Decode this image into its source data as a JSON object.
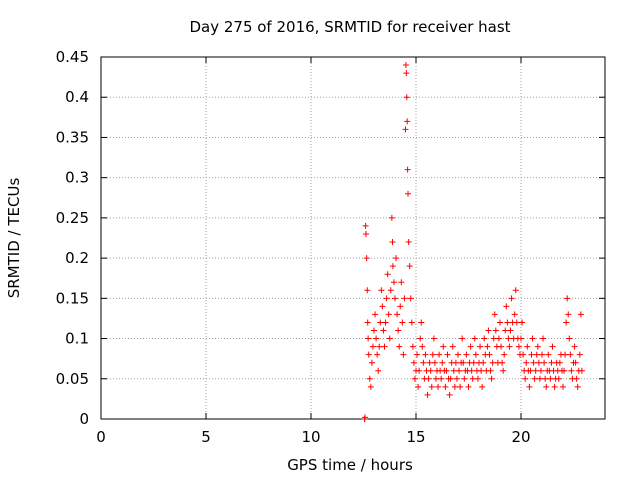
{
  "chart_data": {
    "type": "scatter",
    "title": "Day 275 of 2016, SRMTID for receiver hast",
    "xlabel": "GPS time / hours",
    "ylabel": "SRMTID / TECUs",
    "xlim": [
      0,
      24
    ],
    "ylim": [
      0,
      0.45
    ],
    "x_ticks": [
      0,
      5,
      10,
      15,
      20
    ],
    "x_tick_labels": [
      "0",
      "5",
      "10",
      "15",
      "20"
    ],
    "y_ticks": [
      0,
      0.05,
      0.1,
      0.15,
      0.2,
      0.25,
      0.3,
      0.35,
      0.4,
      0.45
    ],
    "y_tick_labels": [
      "0",
      "0.05",
      "0.1",
      "0.15",
      "0.2",
      "0.25",
      "0.3",
      "0.35",
      "0.4",
      "0.45"
    ],
    "grid": true,
    "marker": "+",
    "series": [
      {
        "name": "SRMTID",
        "color": "#ff0000",
        "points": [
          [
            12.55,
            0.0
          ],
          [
            12.57,
            0.002
          ],
          [
            12.6,
            0.24
          ],
          [
            12.62,
            0.23
          ],
          [
            12.65,
            0.2
          ],
          [
            12.68,
            0.16
          ],
          [
            12.7,
            0.12
          ],
          [
            12.72,
            0.1
          ],
          [
            12.75,
            0.08
          ],
          [
            12.8,
            0.05
          ],
          [
            12.85,
            0.04
          ],
          [
            12.9,
            0.07
          ],
          [
            12.95,
            0.09
          ],
          [
            13.0,
            0.11
          ],
          [
            13.05,
            0.13
          ],
          [
            13.1,
            0.1
          ],
          [
            13.15,
            0.08
          ],
          [
            13.2,
            0.06
          ],
          [
            13.25,
            0.09
          ],
          [
            13.3,
            0.12
          ],
          [
            13.35,
            0.16
          ],
          [
            13.4,
            0.14
          ],
          [
            13.45,
            0.11
          ],
          [
            13.5,
            0.09
          ],
          [
            13.55,
            0.12
          ],
          [
            13.6,
            0.15
          ],
          [
            13.65,
            0.18
          ],
          [
            13.7,
            0.13
          ],
          [
            13.75,
            0.1
          ],
          [
            13.8,
            0.16
          ],
          [
            13.85,
            0.25
          ],
          [
            13.88,
            0.22
          ],
          [
            13.9,
            0.19
          ],
          [
            13.95,
            0.17
          ],
          [
            14.0,
            0.15
          ],
          [
            14.05,
            0.2
          ],
          [
            14.1,
            0.13
          ],
          [
            14.15,
            0.11
          ],
          [
            14.2,
            0.09
          ],
          [
            14.25,
            0.14
          ],
          [
            14.3,
            0.17
          ],
          [
            14.35,
            0.12
          ],
          [
            14.4,
            0.08
          ],
          [
            14.45,
            0.15
          ],
          [
            14.5,
            0.36
          ],
          [
            14.52,
            0.44
          ],
          [
            14.54,
            0.43
          ],
          [
            14.56,
            0.4
          ],
          [
            14.58,
            0.37
          ],
          [
            14.6,
            0.31
          ],
          [
            14.62,
            0.28
          ],
          [
            14.65,
            0.22
          ],
          [
            14.7,
            0.19
          ],
          [
            14.75,
            0.15
          ],
          [
            14.8,
            0.12
          ],
          [
            14.85,
            0.09
          ],
          [
            14.9,
            0.07
          ],
          [
            14.95,
            0.05
          ],
          [
            15.0,
            0.06
          ],
          [
            15.05,
            0.08
          ],
          [
            15.1,
            0.04
          ],
          [
            15.15,
            0.06
          ],
          [
            15.2,
            0.1
          ],
          [
            15.25,
            0.12
          ],
          [
            15.3,
            0.09
          ],
          [
            15.35,
            0.07
          ],
          [
            15.4,
            0.05
          ],
          [
            15.45,
            0.08
          ],
          [
            15.5,
            0.06
          ],
          [
            15.55,
            0.03
          ],
          [
            15.6,
            0.05
          ],
          [
            15.65,
            0.07
          ],
          [
            15.7,
            0.06
          ],
          [
            15.75,
            0.04
          ],
          [
            15.8,
            0.08
          ],
          [
            15.85,
            0.1
          ],
          [
            15.9,
            0.07
          ],
          [
            15.95,
            0.05
          ],
          [
            16.0,
            0.06
          ],
          [
            16.05,
            0.04
          ],
          [
            16.1,
            0.08
          ],
          [
            16.15,
            0.06
          ],
          [
            16.2,
            0.05
          ],
          [
            16.25,
            0.07
          ],
          [
            16.3,
            0.09
          ],
          [
            16.35,
            0.06
          ],
          [
            16.4,
            0.04
          ],
          [
            16.45,
            0.06
          ],
          [
            16.5,
            0.08
          ],
          [
            16.55,
            0.05
          ],
          [
            16.6,
            0.03
          ],
          [
            16.65,
            0.05
          ],
          [
            16.7,
            0.07
          ],
          [
            16.75,
            0.09
          ],
          [
            16.8,
            0.06
          ],
          [
            16.85,
            0.04
          ],
          [
            16.9,
            0.07
          ],
          [
            16.95,
            0.05
          ],
          [
            17.0,
            0.08
          ],
          [
            17.05,
            0.06
          ],
          [
            17.1,
            0.04
          ],
          [
            17.15,
            0.07
          ],
          [
            17.2,
            0.1
          ],
          [
            17.25,
            0.07
          ],
          [
            17.3,
            0.05
          ],
          [
            17.35,
            0.06
          ],
          [
            17.4,
            0.08
          ],
          [
            17.45,
            0.06
          ],
          [
            17.5,
            0.04
          ],
          [
            17.55,
            0.07
          ],
          [
            17.6,
            0.09
          ],
          [
            17.65,
            0.06
          ],
          [
            17.7,
            0.05
          ],
          [
            17.75,
            0.07
          ],
          [
            17.8,
            0.1
          ],
          [
            17.85,
            0.08
          ],
          [
            17.9,
            0.06
          ],
          [
            17.95,
            0.05
          ],
          [
            18.0,
            0.07
          ],
          [
            18.05,
            0.09
          ],
          [
            18.1,
            0.06
          ],
          [
            18.15,
            0.04
          ],
          [
            18.2,
            0.07
          ],
          [
            18.25,
            0.1
          ],
          [
            18.3,
            0.08
          ],
          [
            18.35,
            0.06
          ],
          [
            18.4,
            0.09
          ],
          [
            18.45,
            0.11
          ],
          [
            18.5,
            0.08
          ],
          [
            18.55,
            0.06
          ],
          [
            18.6,
            0.05
          ],
          [
            18.65,
            0.07
          ],
          [
            18.7,
            0.1
          ],
          [
            18.75,
            0.13
          ],
          [
            18.8,
            0.11
          ],
          [
            18.85,
            0.09
          ],
          [
            18.9,
            0.07
          ],
          [
            18.95,
            0.1
          ],
          [
            19.0,
            0.12
          ],
          [
            19.05,
            0.09
          ],
          [
            19.1,
            0.07
          ],
          [
            19.15,
            0.06
          ],
          [
            19.2,
            0.08
          ],
          [
            19.25,
            0.11
          ],
          [
            19.3,
            0.14
          ],
          [
            19.35,
            0.12
          ],
          [
            19.4,
            0.1
          ],
          [
            19.45,
            0.09
          ],
          [
            19.5,
            0.11
          ],
          [
            19.55,
            0.15
          ],
          [
            19.6,
            0.12
          ],
          [
            19.65,
            0.1
          ],
          [
            19.7,
            0.13
          ],
          [
            19.75,
            0.16
          ],
          [
            19.8,
            0.12
          ],
          [
            19.85,
            0.1
          ],
          [
            19.9,
            0.09
          ],
          [
            19.95,
            0.08
          ],
          [
            20.0,
            0.1
          ],
          [
            20.05,
            0.12
          ],
          [
            20.1,
            0.08
          ],
          [
            20.15,
            0.06
          ],
          [
            20.2,
            0.05
          ],
          [
            20.25,
            0.07
          ],
          [
            20.3,
            0.09
          ],
          [
            20.35,
            0.06
          ],
          [
            20.4,
            0.04
          ],
          [
            20.45,
            0.06
          ],
          [
            20.5,
            0.08
          ],
          [
            20.55,
            0.1
          ],
          [
            20.6,
            0.07
          ],
          [
            20.65,
            0.05
          ],
          [
            20.7,
            0.06
          ],
          [
            20.75,
            0.08
          ],
          [
            20.8,
            0.09
          ],
          [
            20.85,
            0.07
          ],
          [
            20.9,
            0.05
          ],
          [
            20.95,
            0.06
          ],
          [
            21.0,
            0.08
          ],
          [
            21.05,
            0.1
          ],
          [
            21.1,
            0.07
          ],
          [
            21.15,
            0.05
          ],
          [
            21.2,
            0.04
          ],
          [
            21.25,
            0.06
          ],
          [
            21.3,
            0.08
          ],
          [
            21.35,
            0.06
          ],
          [
            21.4,
            0.05
          ],
          [
            21.45,
            0.07
          ],
          [
            21.5,
            0.09
          ],
          [
            21.55,
            0.06
          ],
          [
            21.6,
            0.04
          ],
          [
            21.65,
            0.05
          ],
          [
            21.7,
            0.07
          ],
          [
            21.75,
            0.06
          ],
          [
            21.8,
            0.05
          ],
          [
            21.85,
            0.07
          ],
          [
            21.9,
            0.08
          ],
          [
            21.95,
            0.06
          ],
          [
            22.0,
            0.04
          ],
          [
            22.05,
            0.06
          ],
          [
            22.1,
            0.08
          ],
          [
            22.15,
            0.12
          ],
          [
            22.2,
            0.15
          ],
          [
            22.25,
            0.13
          ],
          [
            22.3,
            0.1
          ],
          [
            22.35,
            0.08
          ],
          [
            22.4,
            0.06
          ],
          [
            22.45,
            0.05
          ],
          [
            22.5,
            0.07
          ],
          [
            22.55,
            0.09
          ],
          [
            22.6,
            0.07
          ],
          [
            22.65,
            0.05
          ],
          [
            22.7,
            0.04
          ],
          [
            22.75,
            0.06
          ],
          [
            22.8,
            0.08
          ],
          [
            22.85,
            0.13
          ],
          [
            22.9,
            0.06
          ]
        ]
      }
    ]
  }
}
